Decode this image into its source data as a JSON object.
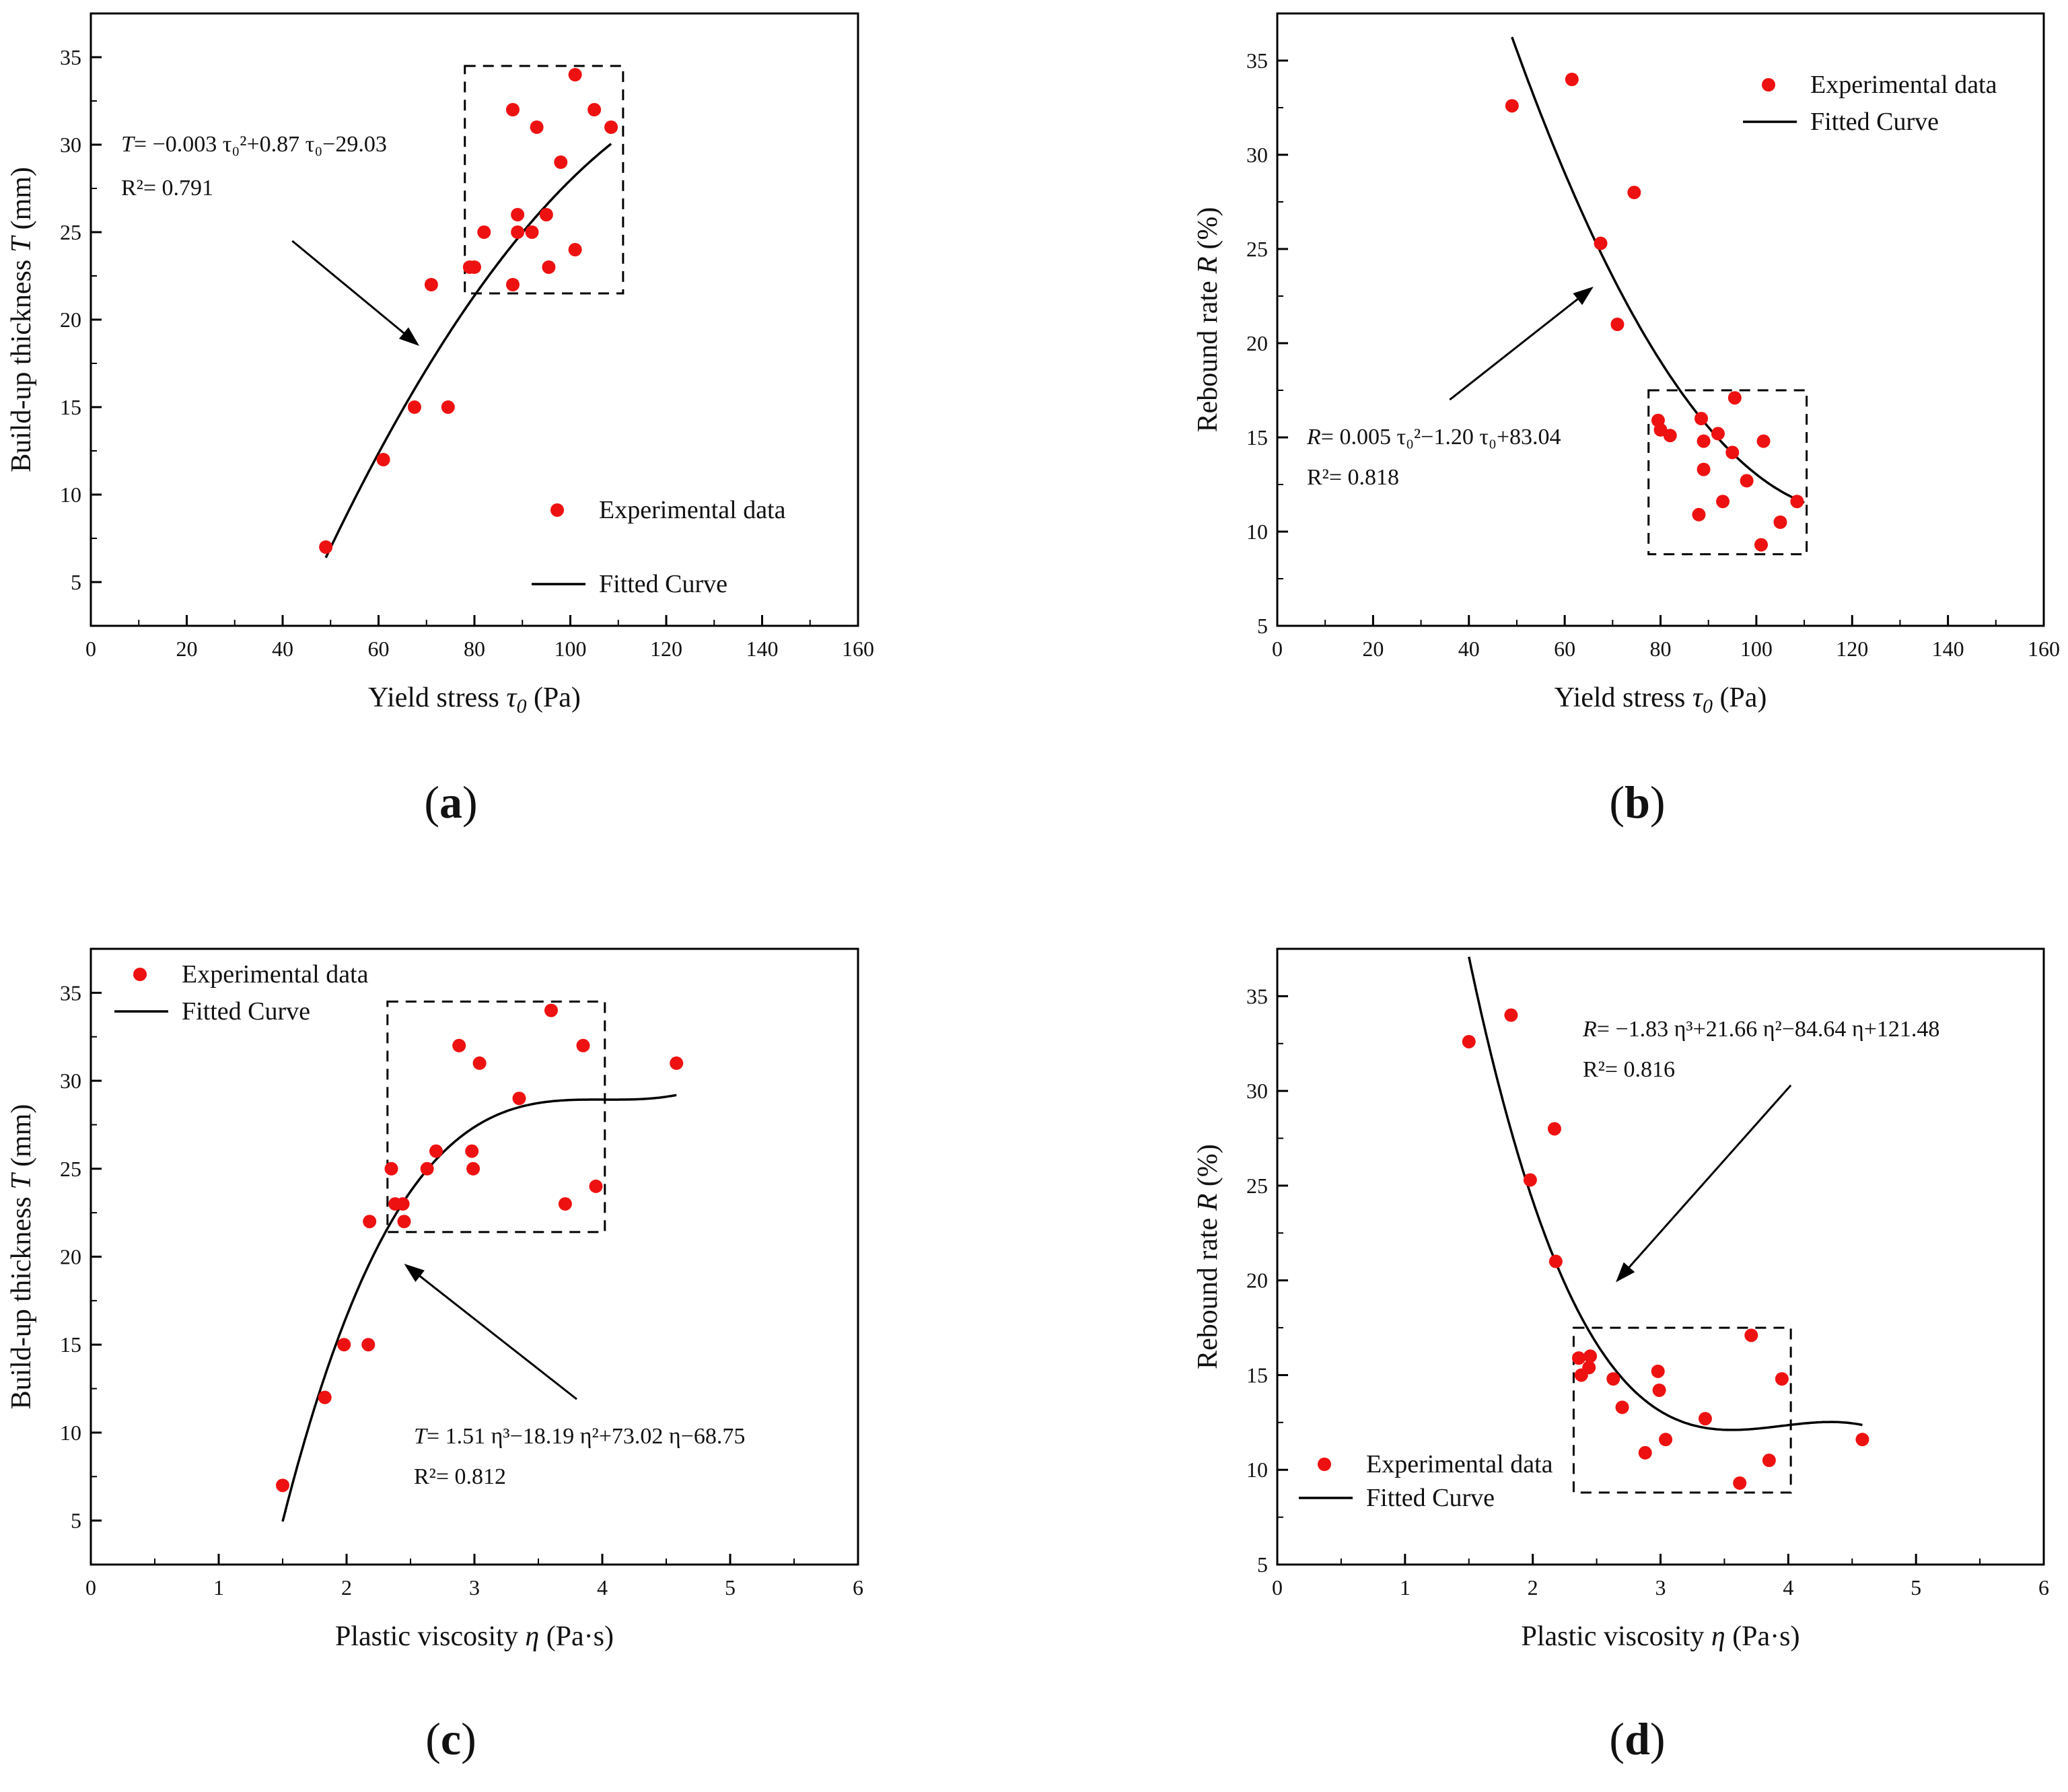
{
  "chart_data": [
    {
      "id": "a",
      "type": "scatter",
      "panel_label": "a",
      "xlabel_pre": "Yield stress ",
      "xlabel_sym": "τ",
      "xlabel_sub": "0",
      "xlabel_post": " (Pa)",
      "ylabel_pre": "Build-up thickness ",
      "ylabel_sym": "T",
      "ylabel_post": " (mm)",
      "xlim": [
        0,
        160
      ],
      "ylim": [
        2.5,
        37.5
      ],
      "xticks": [
        0,
        20,
        40,
        60,
        80,
        100,
        120,
        140,
        160
      ],
      "yticks": [
        5,
        10,
        15,
        20,
        25,
        30,
        35
      ],
      "legend": {
        "points": "Experimental data",
        "curve": "Fitted Curve",
        "position": "lower-right"
      },
      "series": [
        {
          "name": "Experimental data",
          "kind": "points",
          "color": "#ee1111",
          "x": [
            49,
            61,
            67.5,
            71,
            74.5,
            79,
            80,
            82,
            88,
            88,
            89,
            89,
            92,
            93,
            95,
            95.5,
            98,
            101,
            101,
            105,
            108.5
          ],
          "y": [
            7,
            12,
            15,
            22,
            15,
            23,
            23,
            25,
            32,
            22,
            26,
            25,
            25,
            31,
            26,
            23,
            29,
            34,
            24,
            32,
            31
          ]
        },
        {
          "name": "Fitted Curve",
          "kind": "curve",
          "color": "#000000",
          "model": "poly",
          "coef": [
            -29.03,
            0.87,
            -0.003
          ],
          "domain": [
            49,
            108.5
          ]
        }
      ],
      "equation": {
        "sym": "T",
        "text": "= −0.003 τ₀²+0.87 τ₀−29.03",
        "r2": "R²= 0.791"
      },
      "highlight_box": {
        "x": [
          78,
          111
        ],
        "y": [
          21.5,
          34.5
        ]
      },
      "arrow": {
        "from": [
          42,
          24.5
        ],
        "to": [
          68.5,
          18.5
        ]
      }
    },
    {
      "id": "b",
      "type": "scatter",
      "panel_label": "b",
      "xlabel_pre": "Yield stress ",
      "xlabel_sym": "τ",
      "xlabel_sub": "0",
      "xlabel_post": " (Pa)",
      "ylabel_pre": "Rebound rate ",
      "ylabel_sym": "R",
      "ylabel_post": " (%)",
      "xlim": [
        0,
        160
      ],
      "ylim": [
        5,
        37.5
      ],
      "xticks": [
        0,
        20,
        40,
        60,
        80,
        100,
        120,
        140,
        160
      ],
      "yticks": [
        5,
        10,
        15,
        20,
        25,
        30,
        35
      ],
      "legend": {
        "points": "Experimental data",
        "curve": "Fitted Curve",
        "position": "top-right"
      },
      "series": [
        {
          "name": "Experimental data",
          "kind": "points",
          "color": "#ee1111",
          "x": [
            49,
            61.5,
            67.5,
            71,
            74.5,
            79.5,
            80,
            82,
            88,
            88.5,
            89,
            89,
            92,
            93,
            95,
            95.5,
            98,
            101,
            101.5,
            105,
            108.5
          ],
          "y": [
            32.6,
            34,
            25.3,
            21,
            28,
            15.9,
            15.4,
            15.1,
            10.9,
            16,
            14.8,
            13.3,
            15.2,
            11.6,
            14.2,
            17.1,
            12.7,
            9.3,
            14.8,
            10.5,
            11.6
          ]
        },
        {
          "name": "Fitted Curve",
          "kind": "curve",
          "color": "#000000",
          "model": "poly",
          "coef": [
            83.04,
            -1.2,
            0.005
          ],
          "domain": [
            49,
            110
          ]
        }
      ],
      "equation": {
        "sym": "R",
        "text": "= 0.005 τ₀²−1.20 τ₀+83.04",
        "r2": "R²= 0.818"
      },
      "highlight_box": {
        "x": [
          77.5,
          110.5
        ],
        "y": [
          8.8,
          17.5
        ]
      },
      "arrow": {
        "from": [
          36,
          17
        ],
        "to": [
          66,
          23
        ]
      }
    },
    {
      "id": "c",
      "type": "scatter",
      "panel_label": "c",
      "xlabel_pre": "Plastic viscosity ",
      "xlabel_sym": "η",
      "xlabel_sub": "",
      "xlabel_post": " (Pa·s)",
      "ylabel_pre": "Build-up thickness ",
      "ylabel_sym": "T",
      "ylabel_post": " (mm)",
      "xlim": [
        0,
        6
      ],
      "ylim": [
        2.5,
        37.5
      ],
      "xticks": [
        0,
        1,
        2,
        3,
        4,
        5,
        6
      ],
      "yticks": [
        5,
        10,
        15,
        20,
        25,
        30,
        35
      ],
      "legend": {
        "points": "Experimental data",
        "curve": "Fitted Curve",
        "position": "top-left"
      },
      "series": [
        {
          "name": "Experimental data",
          "kind": "points",
          "color": "#ee1111",
          "x": [
            1.5,
            1.83,
            1.98,
            2.17,
            2.18,
            2.35,
            2.38,
            2.44,
            2.45,
            2.63,
            2.7,
            2.88,
            2.98,
            2.99,
            3.04,
            3.35,
            3.6,
            3.71,
            3.85,
            3.95,
            4.58
          ],
          "y": [
            7,
            12,
            15,
            15,
            22,
            25,
            23,
            23,
            22,
            25,
            26,
            32,
            26,
            25,
            31,
            29,
            34,
            23,
            32,
            24,
            31
          ]
        },
        {
          "name": "Fitted Curve",
          "kind": "curve",
          "color": "#000000",
          "model": "poly",
          "coef": [
            -68.75,
            73.02,
            -18.19,
            1.51
          ],
          "domain": [
            1.5,
            4.58
          ]
        }
      ],
      "equation": {
        "sym": "T",
        "text": "= 1.51 η³−18.19 η²+73.02 η−68.75",
        "r2": "R²= 0.812"
      },
      "highlight_box": {
        "x": [
          2.32,
          4.02
        ],
        "y": [
          21.4,
          34.5
        ]
      },
      "arrow": {
        "from": [
          3.8,
          11.9
        ],
        "to": [
          2.45,
          19.6
        ]
      }
    },
    {
      "id": "d",
      "type": "scatter",
      "panel_label": "d",
      "xlabel_pre": "Plastic viscosity ",
      "xlabel_sym": "η",
      "xlabel_sub": "",
      "xlabel_post": " (Pa·s)",
      "ylabel_pre": "Rebound rate ",
      "ylabel_sym": "R",
      "ylabel_post": " (%)",
      "xlim": [
        0,
        6
      ],
      "ylim": [
        5,
        37.5
      ],
      "xticks": [
        0,
        1,
        2,
        3,
        4,
        5,
        6
      ],
      "yticks": [
        5,
        10,
        15,
        20,
        25,
        30,
        35
      ],
      "legend": {
        "points": "Experimental data",
        "curve": "Fitted Curve",
        "position": "bottom-left"
      },
      "series": [
        {
          "name": "Experimental data",
          "kind": "points",
          "color": "#ee1111",
          "x": [
            1.5,
            1.83,
            1.98,
            2.17,
            2.18,
            2.36,
            2.38,
            2.44,
            2.45,
            2.63,
            2.7,
            2.88,
            2.98,
            2.99,
            3.04,
            3.35,
            3.62,
            3.71,
            3.85,
            3.95,
            4.58
          ],
          "y": [
            32.6,
            34,
            25.3,
            28,
            21,
            15.9,
            15,
            15.4,
            16,
            14.8,
            13.3,
            10.9,
            15.2,
            14.2,
            11.6,
            12.7,
            9.3,
            17.1,
            10.5,
            14.8,
            11.6
          ]
        },
        {
          "name": "Fitted Curve",
          "kind": "curve",
          "color": "#000000",
          "model": "poly",
          "coef": [
            121.48,
            -84.64,
            21.66,
            -1.83
          ],
          "domain": [
            1.5,
            4.58
          ]
        }
      ],
      "equation": {
        "sym": "R",
        "text": "= −1.83 η³+21.66 η²−84.64 η+121.48",
        "r2": "R²= 0.816"
      },
      "highlight_box": {
        "x": [
          2.32,
          4.02
        ],
        "y": [
          8.8,
          17.5
        ]
      },
      "arrow": {
        "from": [
          4.02,
          30.3
        ],
        "to": [
          2.65,
          19.9
        ]
      }
    }
  ]
}
